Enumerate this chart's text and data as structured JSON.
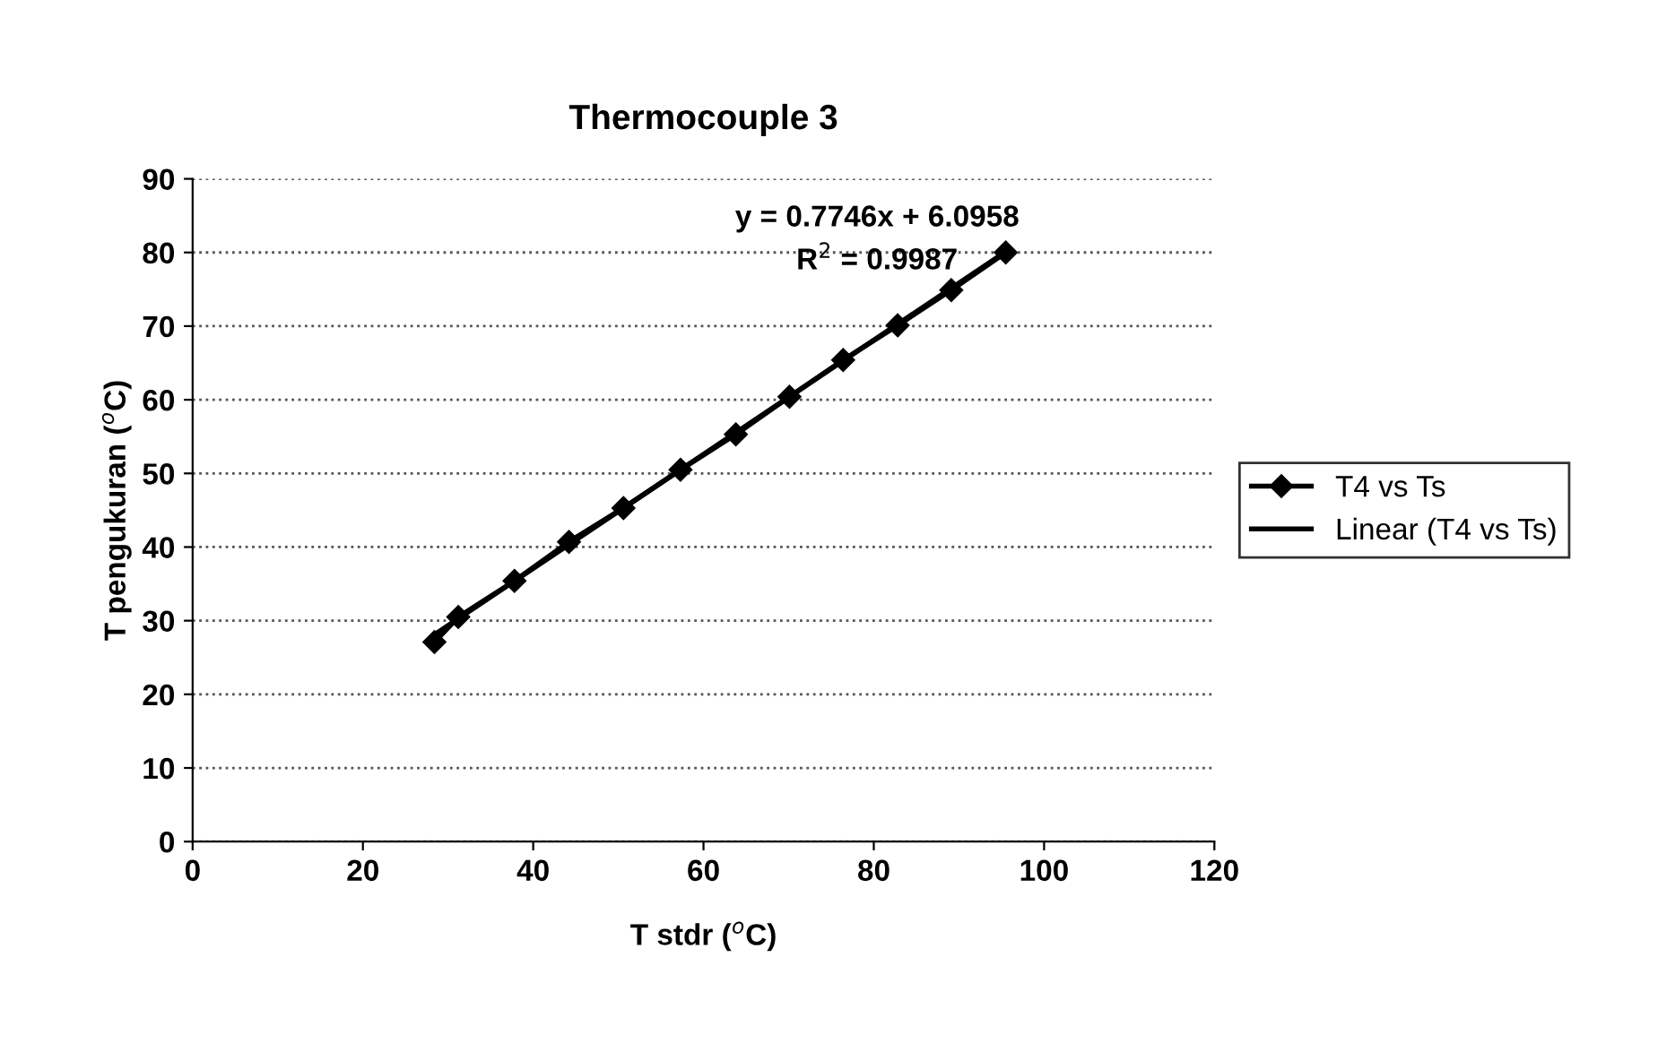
{
  "chart_data": {
    "type": "line",
    "title": "Thermocouple 3",
    "xlabel": "T stdr ($^{o}$C)",
    "ylabel": "T pengukuran ($^{o}$C)",
    "series": [
      {
        "name": "T4 vs Ts",
        "color": "#000000",
        "marker": "diamond",
        "x": [
          28.4,
          31.2,
          37.8,
          44.2,
          50.6,
          57.3,
          63.8,
          70.1,
          76.4,
          82.8,
          89.1,
          95.5
        ],
        "values": [
          27.1,
          30.5,
          35.4,
          40.7,
          45.3,
          50.5,
          55.3,
          60.4,
          65.4,
          70.1,
          74.9,
          80.0
        ]
      },
      {
        "name": "Linear (T4 vs Ts)",
        "type": "line",
        "color": "#000000",
        "marker": "none",
        "x": [
          28.4,
          95.5
        ],
        "values": [
          28.1,
          80.1
        ]
      }
    ],
    "annotations": [
      "y = 0.7746x + 6.0958",
      "R$^{2}$ = 0.9987"
    ],
    "xlim": [
      0,
      120
    ],
    "xticks": [
      0,
      20,
      40,
      60,
      80,
      100,
      120
    ],
    "ylim": [
      0,
      90
    ],
    "yticks": [
      0,
      10,
      20,
      30,
      40,
      50,
      60,
      70,
      80,
      90
    ],
    "grid": "y",
    "legend": "right",
    "line_style": "solid"
  }
}
